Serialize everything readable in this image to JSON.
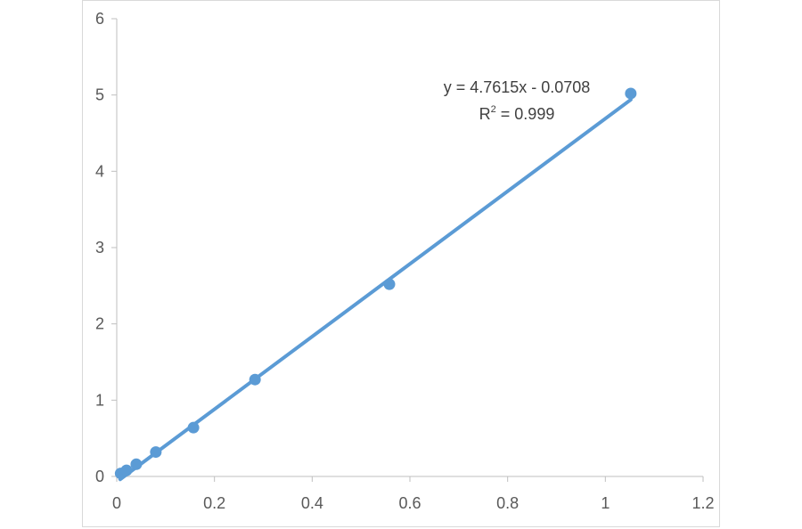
{
  "chart_data": {
    "type": "scatter",
    "title": "",
    "xlabel": "",
    "ylabel": "",
    "xlim": [
      0,
      1.2
    ],
    "ylim": [
      0,
      6
    ],
    "x_ticks": [
      0,
      0.2,
      0.4,
      0.6,
      0.8,
      1,
      1.2
    ],
    "x_tick_labels": [
      "0",
      "0.2",
      "0.4",
      "0.6",
      "0.8",
      "1",
      "1.2"
    ],
    "y_ticks": [
      0,
      1,
      2,
      3,
      4,
      5,
      6
    ],
    "y_tick_labels": [
      "0",
      "1",
      "2",
      "3",
      "4",
      "5",
      "6"
    ],
    "grid": false,
    "legend": "none",
    "series": [
      {
        "color": "#5b9bd5",
        "points": [
          {
            "x": 0.008,
            "y": 0.04
          },
          {
            "x": 0.02,
            "y": 0.08
          },
          {
            "x": 0.04,
            "y": 0.16
          },
          {
            "x": 0.08,
            "y": 0.32
          },
          {
            "x": 0.157,
            "y": 0.64
          },
          {
            "x": 0.283,
            "y": 1.27
          },
          {
            "x": 0.558,
            "y": 2.52
          },
          {
            "x": 1.052,
            "y": 5.02
          }
        ]
      }
    ],
    "trendline": {
      "type": "linear",
      "slope": 4.7615,
      "intercept": -0.0708,
      "x_range": [
        0.007,
        1.052
      ],
      "color": "#5b9bd5",
      "equation_text": "y = 4.7615x - 0.0708",
      "r2_prefix": "R",
      "r2_sup": "2",
      "r2_suffix": " = 0.999"
    }
  }
}
